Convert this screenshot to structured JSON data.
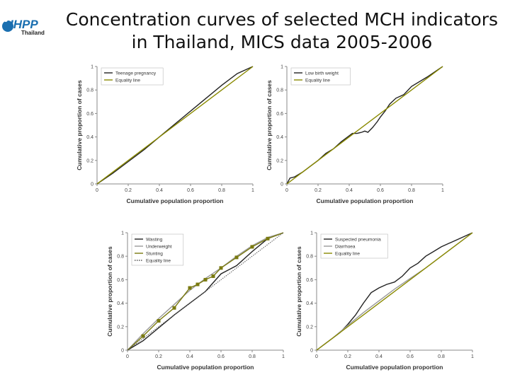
{
  "logo": {
    "text": "IHPP",
    "sub": "Thailand",
    "color": "#1a6fb0"
  },
  "title": {
    "line1": "Concentration curves of selected MCH indicators",
    "line2": "in Thailand, MICS data 2005-2006"
  },
  "colors": {
    "equality": "#8a8a00",
    "dark": "#222222",
    "grey": "#999999",
    "stunting": "#7a7a10",
    "axis": "#888888"
  },
  "chart_data": [
    {
      "type": "line",
      "xlabel": "Cumulative population proportion",
      "ylabel": "Cumulative proportion of cases",
      "xticks": [
        "0",
        "0.2",
        "0.4",
        "0.6",
        "0.8",
        "1"
      ],
      "yticks": [
        "0",
        "0.2",
        "0.4",
        "0.6",
        "0.8",
        "1"
      ],
      "xlim": [
        0,
        1
      ],
      "ylim": [
        0,
        1
      ],
      "legend_position": "top-left",
      "series": [
        {
          "name": "Teenage pregnancy",
          "color": "#222222",
          "x": [
            0,
            0.1,
            0.2,
            0.3,
            0.4,
            0.5,
            0.6,
            0.7,
            0.8,
            0.9,
            1
          ],
          "y": [
            0,
            0.09,
            0.19,
            0.29,
            0.4,
            0.51,
            0.62,
            0.73,
            0.84,
            0.94,
            1
          ]
        },
        {
          "name": "Equality line",
          "color": "#8a8a00",
          "x": [
            0,
            1
          ],
          "y": [
            0,
            1
          ]
        }
      ]
    },
    {
      "type": "line",
      "xlabel": "Cumulative population proportion",
      "ylabel": "Cumulative proportion of cases",
      "xticks": [
        "0",
        "0.2",
        "0.4",
        "0.6",
        "0.8",
        "1"
      ],
      "yticks": [
        "0",
        "0.2",
        "0.4",
        "0.6",
        "0.8",
        "1"
      ],
      "xlim": [
        0,
        1
      ],
      "ylim": [
        0,
        1
      ],
      "legend_position": "top-left",
      "series": [
        {
          "name": "Low birth weight",
          "color": "#222222",
          "x": [
            0,
            0.02,
            0.05,
            0.1,
            0.15,
            0.2,
            0.25,
            0.3,
            0.35,
            0.4,
            0.42,
            0.45,
            0.48,
            0.5,
            0.52,
            0.55,
            0.58,
            0.6,
            0.63,
            0.66,
            0.7,
            0.75,
            0.8,
            0.9,
            1
          ],
          "y": [
            0,
            0.05,
            0.06,
            0.1,
            0.15,
            0.2,
            0.26,
            0.3,
            0.36,
            0.41,
            0.43,
            0.43,
            0.44,
            0.45,
            0.44,
            0.48,
            0.53,
            0.57,
            0.62,
            0.68,
            0.73,
            0.76,
            0.83,
            0.91,
            1
          ]
        },
        {
          "name": "Equality line",
          "color": "#8a8a00",
          "x": [
            0,
            1
          ],
          "y": [
            0,
            1
          ]
        }
      ]
    },
    {
      "type": "line",
      "xlabel": "Cumulative population proportion",
      "ylabel": "Cumulative proportion of cases",
      "xticks": [
        "0",
        "0.2",
        "0.4",
        "0.6",
        "0.8",
        "1"
      ],
      "yticks": [
        "0",
        "0.2",
        "0.4",
        "0.6",
        "0.8",
        "1"
      ],
      "xlim": [
        0,
        1
      ],
      "ylim": [
        0,
        1
      ],
      "legend_position": "top-left",
      "series": [
        {
          "name": "Wasting",
          "color": "#222222",
          "x": [
            0,
            0.1,
            0.2,
            0.3,
            0.4,
            0.5,
            0.6,
            0.7,
            0.8,
            0.9,
            1
          ],
          "y": [
            0,
            0.08,
            0.19,
            0.3,
            0.4,
            0.5,
            0.65,
            0.72,
            0.84,
            0.95,
            1
          ]
        },
        {
          "name": "Underweight",
          "color": "#999999",
          "x": [
            0,
            0.1,
            0.2,
            0.3,
            0.4,
            0.5,
            0.6,
            0.7,
            0.8,
            0.9,
            1
          ],
          "y": [
            0,
            0.14,
            0.27,
            0.39,
            0.51,
            0.61,
            0.7,
            0.8,
            0.89,
            0.96,
            1
          ]
        },
        {
          "name": "Stunting",
          "color": "#7a7a10",
          "markers": true,
          "x": [
            0,
            0.1,
            0.2,
            0.3,
            0.4,
            0.45,
            0.5,
            0.55,
            0.6,
            0.7,
            0.8,
            0.9,
            1
          ],
          "y": [
            0,
            0.12,
            0.25,
            0.36,
            0.53,
            0.56,
            0.6,
            0.63,
            0.7,
            0.79,
            0.88,
            0.95,
            1
          ]
        },
        {
          "name": "Equality line",
          "color": "#555555",
          "dotted": true,
          "x": [
            0,
            1
          ],
          "y": [
            0,
            1
          ]
        }
      ]
    },
    {
      "type": "line",
      "xlabel": "Cumulative population proportion",
      "ylabel": "Cumulative proportion of cases",
      "xticks": [
        "0",
        "0.2",
        "0.4",
        "0.6",
        "0.8",
        "1"
      ],
      "yticks": [
        "0",
        "0.2",
        "0.4",
        "0.6",
        "0.8",
        "1"
      ],
      "xlim": [
        0,
        1
      ],
      "ylim": [
        0,
        1
      ],
      "legend_position": "top-left",
      "series": [
        {
          "name": "Suspected pneumonia",
          "color": "#222222",
          "x": [
            0,
            0.05,
            0.1,
            0.15,
            0.2,
            0.25,
            0.3,
            0.35,
            0.4,
            0.45,
            0.5,
            0.55,
            0.6,
            0.65,
            0.7,
            0.75,
            0.8,
            0.85,
            0.9,
            0.95,
            1
          ],
          "y": [
            0,
            0.05,
            0.1,
            0.15,
            0.22,
            0.3,
            0.4,
            0.49,
            0.53,
            0.56,
            0.58,
            0.63,
            0.7,
            0.74,
            0.8,
            0.84,
            0.88,
            0.91,
            0.94,
            0.97,
            1
          ]
        },
        {
          "name": "Diarrhoea",
          "color": "#999999",
          "x": [
            0,
            0.1,
            0.2,
            0.3,
            0.4,
            0.5,
            0.6,
            0.7,
            0.8,
            0.9,
            1
          ],
          "y": [
            0,
            0.1,
            0.21,
            0.32,
            0.42,
            0.52,
            0.61,
            0.7,
            0.8,
            0.9,
            1
          ]
        },
        {
          "name": "Equality line",
          "color": "#8a8a00",
          "x": [
            0,
            1
          ],
          "y": [
            0,
            1
          ]
        }
      ]
    }
  ]
}
